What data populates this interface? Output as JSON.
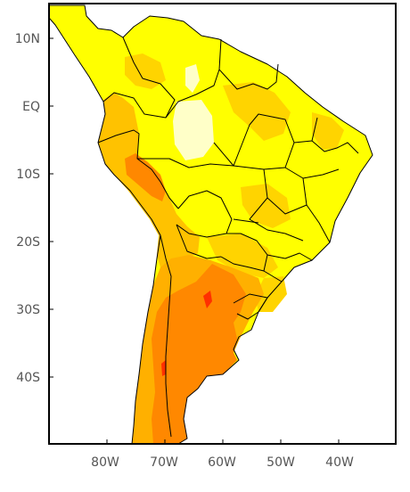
{
  "map": {
    "y_axis_labels": [
      "10N",
      "EQ",
      "10S",
      "20S",
      "30S",
      "40S"
    ],
    "x_axis_labels": [
      "80W",
      "70W",
      "60W",
      "50W",
      "40W"
    ],
    "colors": {
      "background": "#ffffff",
      "ocean": "#ffffff",
      "pale_yellow": "#ffffc8",
      "yellow": "#ffff00",
      "gold": "#ffd400",
      "amber": "#ffb000",
      "orange": "#ff8000",
      "red": "#ff3000",
      "border": "#000000"
    }
  }
}
